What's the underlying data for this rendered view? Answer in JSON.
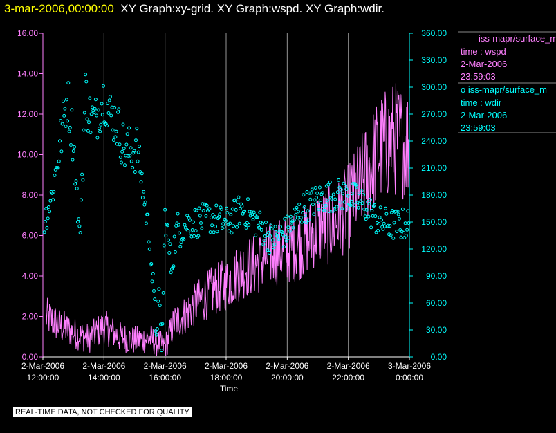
{
  "header": {
    "timestamp": "3-mar-2006,00:00:00",
    "graphs": "XY Graph:xy-grid.  XY Graph:wspd.  XY Graph:wdir."
  },
  "legend": {
    "wspd": {
      "line": "——iss-mapr/surface_m",
      "time": "time : wspd",
      "date": "2-Mar-2006",
      "clock": "23:59:03"
    },
    "wdir": {
      "line": "o  iss-mapr/surface_m",
      "time": "time : wdir",
      "date": "2-Mar-2006",
      "clock": "23:59:03"
    }
  },
  "disclaimer": "REAL-TIME DATA, NOT CHECKED FOR QUALITY",
  "colors": {
    "wspd": "#ff80ff",
    "wdir": "#00ffff",
    "grid": "#c8c8c8",
    "axis_text": "#ffffff"
  },
  "chart_data": {
    "type": "line",
    "xlabel": "Time",
    "x_ticks": [
      {
        "hour": 12,
        "d": "2-Mar-2006",
        "t": "12:00:00"
      },
      {
        "hour": 14,
        "d": "2-Mar-2006",
        "t": "14:00:00"
      },
      {
        "hour": 16,
        "d": "2-Mar-2006",
        "t": "16:00:00"
      },
      {
        "hour": 18,
        "d": "2-Mar-2006",
        "t": "18:00:00"
      },
      {
        "hour": 20,
        "d": "2-Mar-2006",
        "t": "20:00:00"
      },
      {
        "hour": 22,
        "d": "2-Mar-2006",
        "t": "22:00:00"
      },
      {
        "hour": 24,
        "d": "3-Mar-2006",
        "t": "0:00:00"
      }
    ],
    "xlim_hours": [
      12,
      24
    ],
    "left_axis": {
      "series": "wspd",
      "ylim": [
        0,
        16
      ],
      "ticks": [
        "0.00",
        "2.00",
        "4.00",
        "6.00",
        "8.00",
        "10.00",
        "12.00",
        "14.00",
        "16.00"
      ]
    },
    "right_axis": {
      "series": "wdir",
      "ylim": [
        0,
        360
      ],
      "ticks": [
        "0.00",
        "30.00",
        "60.00",
        "90.00",
        "120.00",
        "150.00",
        "180.00",
        "210.00",
        "240.00",
        "270.00",
        "300.00",
        "330.00",
        "360.00"
      ]
    },
    "grid": "vertical lines at each x tick",
    "series": [
      {
        "name": "wspd",
        "style": "line",
        "x": [
          12.0,
          12.5,
          13.0,
          13.5,
          14.0,
          14.5,
          15.0,
          15.5,
          16.0,
          16.3,
          16.6,
          17.0,
          17.5,
          18.0,
          18.5,
          19.0,
          19.5,
          20.0,
          20.5,
          21.0,
          21.5,
          22.0,
          22.5,
          23.0,
          23.5,
          24.0
        ],
        "y": [
          2.1,
          1.6,
          1.2,
          0.9,
          1.5,
          1.0,
          0.8,
          0.9,
          0.5,
          1.7,
          2.0,
          2.6,
          3.2,
          3.6,
          4.3,
          4.6,
          5.1,
          5.3,
          5.6,
          6.4,
          6.5,
          7.4,
          8.8,
          10.2,
          10.8,
          10.6
        ]
      },
      {
        "name": "wdir",
        "style": "markers",
        "x": [
          12.0,
          12.3,
          12.6,
          12.8,
          13.0,
          13.2,
          13.4,
          13.5,
          13.7,
          14.0,
          14.2,
          14.4,
          14.7,
          14.9,
          15.1,
          15.3,
          15.5,
          15.7,
          15.8,
          15.9,
          16.0,
          16.2,
          16.4,
          16.5,
          16.7,
          17.0,
          17.5,
          18.0,
          18.5,
          19.0,
          19.5,
          20.0,
          20.5,
          21.0,
          21.5,
          22.0,
          22.5,
          23.0,
          23.5,
          24.0
        ],
        "y": [
          145,
          180,
          245,
          290,
          240,
          130,
          300,
          270,
          262,
          290,
          270,
          262,
          228,
          230,
          232,
          180,
          130,
          30,
          60,
          10,
          160,
          100,
          145,
          140,
          148,
          150,
          155,
          148,
          165,
          150,
          130,
          140,
          165,
          175,
          180,
          180,
          170,
          150,
          147,
          148
        ]
      }
    ]
  }
}
